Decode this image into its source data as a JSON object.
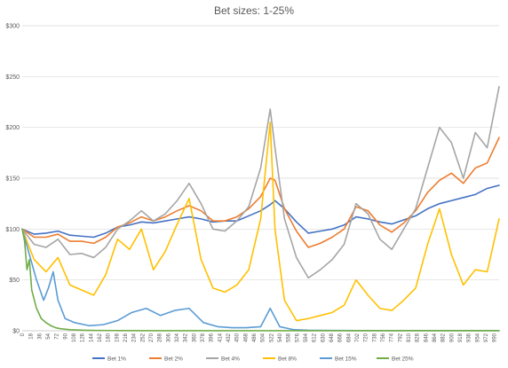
{
  "chart_data": {
    "type": "line",
    "title": "Bet sizes: 1-25%",
    "xlabel": "",
    "ylabel": "",
    "ylim": [
      0,
      300
    ],
    "xlim": [
      0,
      1000
    ],
    "y_ticks": [
      "$0",
      "$50",
      "$100",
      "$150",
      "$200",
      "$250",
      "$300"
    ],
    "y_tick_values": [
      0,
      50,
      100,
      150,
      200,
      250,
      300
    ],
    "x_ticks": [
      "0",
      "18",
      "36",
      "54",
      "72",
      "90",
      "108",
      "126",
      "144",
      "162",
      "180",
      "198",
      "216",
      "234",
      "252",
      "270",
      "288",
      "306",
      "324",
      "342",
      "360",
      "378",
      "396",
      "414",
      "432",
      "450",
      "468",
      "486",
      "504",
      "522",
      "540",
      "558",
      "576",
      "594",
      "612",
      "630",
      "648",
      "666",
      "684",
      "702",
      "720",
      "738",
      "756",
      "774",
      "792",
      "810",
      "828",
      "846",
      "864",
      "882",
      "900",
      "918",
      "936",
      "954",
      "972",
      "990"
    ],
    "grid": "horizontal",
    "legend_position": "bottom",
    "series": [
      {
        "name": "Bet 1%",
        "color": "#4472c4",
        "x": [
          0,
          25,
          50,
          75,
          100,
          125,
          150,
          175,
          200,
          225,
          250,
          275,
          300,
          325,
          350,
          375,
          400,
          425,
          450,
          475,
          500,
          520,
          530,
          550,
          575,
          600,
          625,
          650,
          675,
          700,
          725,
          750,
          775,
          800,
          825,
          850,
          875,
          900,
          925,
          950,
          975,
          1000
        ],
        "values": [
          100,
          95,
          96,
          98,
          94,
          93,
          92,
          96,
          102,
          104,
          107,
          106,
          108,
          110,
          112,
          110,
          107,
          108,
          108,
          113,
          118,
          124,
          128,
          120,
          107,
          96,
          98,
          100,
          104,
          112,
          110,
          107,
          105,
          109,
          113,
          120,
          125,
          128,
          131,
          134,
          140,
          143
        ]
      },
      {
        "name": "Bet 2%",
        "color": "#ed7d31",
        "x": [
          0,
          25,
          50,
          75,
          100,
          125,
          150,
          175,
          200,
          225,
          250,
          275,
          300,
          325,
          350,
          375,
          400,
          425,
          450,
          475,
          500,
          520,
          530,
          550,
          575,
          600,
          625,
          650,
          675,
          700,
          725,
          750,
          775,
          800,
          825,
          850,
          875,
          900,
          925,
          950,
          975,
          1000
        ],
        "values": [
          100,
          92,
          92,
          95,
          88,
          88,
          86,
          92,
          102,
          106,
          112,
          108,
          112,
          118,
          123,
          118,
          108,
          108,
          112,
          120,
          132,
          150,
          148,
          120,
          98,
          82,
          86,
          92,
          100,
          122,
          118,
          104,
          97,
          106,
          118,
          136,
          148,
          155,
          145,
          160,
          165,
          190
        ]
      },
      {
        "name": "Bet 4%",
        "color": "#a5a5a5",
        "x": [
          0,
          25,
          50,
          75,
          100,
          125,
          150,
          175,
          200,
          225,
          250,
          275,
          300,
          325,
          350,
          375,
          400,
          425,
          450,
          475,
          500,
          520,
          530,
          550,
          575,
          600,
          625,
          650,
          675,
          700,
          725,
          750,
          775,
          800,
          825,
          850,
          875,
          900,
          925,
          950,
          975,
          1000
        ],
        "values": [
          100,
          85,
          82,
          90,
          75,
          76,
          72,
          82,
          100,
          108,
          118,
          108,
          115,
          128,
          145,
          125,
          100,
          98,
          108,
          122,
          160,
          218,
          180,
          110,
          72,
          52,
          60,
          70,
          85,
          125,
          115,
          90,
          80,
          100,
          120,
          160,
          200,
          185,
          150,
          195,
          180,
          240
        ]
      },
      {
        "name": "Bet 8%",
        "color": "#ffc000",
        "x": [
          0,
          25,
          50,
          75,
          100,
          125,
          150,
          175,
          200,
          225,
          250,
          275,
          300,
          325,
          350,
          375,
          400,
          425,
          450,
          475,
          500,
          520,
          530,
          550,
          575,
          600,
          625,
          650,
          675,
          700,
          725,
          750,
          775,
          800,
          825,
          850,
          875,
          900,
          925,
          950,
          975,
          1000
        ],
        "values": [
          100,
          70,
          58,
          72,
          45,
          40,
          35,
          55,
          90,
          80,
          100,
          60,
          78,
          105,
          130,
          70,
          42,
          38,
          45,
          60,
          110,
          205,
          100,
          30,
          10,
          12,
          15,
          18,
          25,
          50,
          35,
          22,
          20,
          30,
          42,
          85,
          120,
          75,
          45,
          60,
          58,
          110
        ]
      },
      {
        "name": "Bet 15%",
        "color": "#5b9bd5",
        "x": [
          0,
          15,
          30,
          45,
          55,
          65,
          75,
          90,
          110,
          140,
          170,
          200,
          230,
          260,
          290,
          320,
          350,
          380,
          410,
          440,
          470,
          500,
          520,
          540,
          570,
          600,
          650,
          700,
          750,
          800,
          850,
          900,
          950,
          1000
        ],
        "values": [
          100,
          75,
          50,
          30,
          42,
          58,
          30,
          12,
          8,
          5,
          6,
          10,
          18,
          22,
          15,
          20,
          22,
          8,
          4,
          3,
          3,
          4,
          22,
          4,
          1,
          0.5,
          0.3,
          0.2,
          0.2,
          0.2,
          0.2,
          0.2,
          0.2,
          0.2
        ]
      },
      {
        "name": "Bet 25%",
        "color": "#70ad47",
        "x": [
          0,
          5,
          10,
          15,
          20,
          30,
          40,
          50,
          60,
          70,
          80,
          100,
          130,
          160,
          200,
          300,
          400,
          500,
          600,
          700,
          800,
          900,
          1000
        ],
        "values": [
          100,
          88,
          60,
          70,
          40,
          22,
          12,
          8,
          5,
          3,
          2,
          1,
          0.5,
          0.3,
          0.2,
          0.1,
          0.1,
          0.1,
          0.1,
          0.1,
          0.1,
          0.1,
          0.1
        ]
      }
    ]
  }
}
